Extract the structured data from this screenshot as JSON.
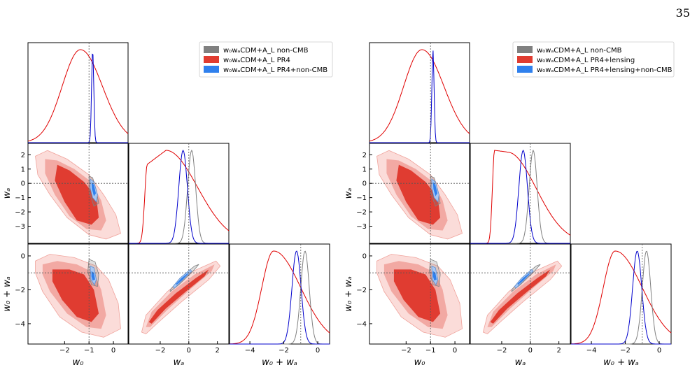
{
  "page": {
    "number": "35"
  },
  "colors": {
    "gray": "#808080",
    "red": "#e03c31",
    "red_mid": "#f2a9a3",
    "red_light": "#fbdcd9",
    "blue": "#2f80ed",
    "blue_dark": "#0000cc",
    "blue_light": "#a9c8f2",
    "line_red": "#e00000"
  },
  "chart_data": [
    {
      "type": "corner",
      "parameters": [
        "w0",
        "wa",
        "w0+wa"
      ],
      "axis_labels": {
        "w0": "w₀",
        "wa": "wₐ",
        "w0+wa": "w₀ + wₐ"
      },
      "reference_values": {
        "w0": -1,
        "wa": 0,
        "w0+wa": -1
      },
      "ranges": {
        "w0": [
          -3.5,
          0.6
        ],
        "wa": [
          -4.2,
          2.8
        ],
        "w0+wa": [
          -5.2,
          0.7
        ]
      },
      "ticks": {
        "w0": [
          "−2",
          "−1",
          "0"
        ],
        "wa_y": [
          "2",
          "1",
          "0",
          "−1",
          "−2",
          "−3"
        ],
        "wa_x": [
          "−2",
          "0",
          "2"
        ],
        "w0wa_y": [
          "0",
          "−2",
          "−4"
        ],
        "w0wa_x": [
          "−4",
          "−2",
          "0"
        ]
      },
      "legend": {
        "placement": "top-right",
        "entries": [
          {
            "label": "w₀wₐCDM+A_L non-CMB",
            "color": "#808080"
          },
          {
            "label": "w₀wₐCDM+A_L PR4",
            "color": "#e03c31"
          },
          {
            "label": "w₀wₐCDM+A_L PR4+non-CMB",
            "color": "#2f80ed"
          }
        ]
      },
      "series": [
        {
          "name": "w₀wₐCDM+A_L non-CMB",
          "marginal_peaks": {
            "wa": 0.2,
            "w0+wa": -0.75
          }
        },
        {
          "name": "w₀wₐCDM+A_L PR4",
          "marginal_peaks": {
            "w0": -1.35,
            "wa": -1.6,
            "w0+wa": -2.6
          }
        },
        {
          "name": "w₀wₐCDM+A_L PR4+non-CMB",
          "marginal_peaks": {
            "w0": -0.85,
            "wa": -0.4,
            "w0+wa": -1.25
          }
        }
      ]
    },
    {
      "type": "corner",
      "parameters": [
        "w0",
        "wa",
        "w0+wa"
      ],
      "axis_labels": {
        "w0": "w₀",
        "wa": "wₐ",
        "w0+wa": "w₀ + wₐ"
      },
      "reference_values": {
        "w0": -1,
        "wa": 0,
        "w0+wa": -1
      },
      "ranges": {
        "w0": [
          -3.5,
          0.6
        ],
        "wa": [
          -4.2,
          2.8
        ],
        "w0+wa": [
          -5.2,
          0.7
        ]
      },
      "ticks": {
        "w0": [
          "−2",
          "−1",
          "0"
        ],
        "wa_y": [
          "2",
          "1",
          "0",
          "−1",
          "−2",
          "−3"
        ],
        "wa_x": [
          "−2",
          "0",
          "2"
        ],
        "w0wa_y": [
          "0",
          "−2",
          "−4"
        ],
        "w0wa_x": [
          "−4",
          "−2",
          "0"
        ]
      },
      "legend": {
        "placement": "top-right",
        "entries": [
          {
            "label": "w₀wₐCDM+A_L non-CMB",
            "color": "#808080"
          },
          {
            "label": "w₀wₐCDM+A_L PR4+lensing",
            "color": "#e03c31"
          },
          {
            "label": "w₀wₐCDM+A_L PR4+lensing+non-CMB",
            "color": "#2f80ed"
          }
        ]
      },
      "series": [
        {
          "name": "w₀wₐCDM+A_L non-CMB",
          "marginal_peaks": {
            "wa": 0.2,
            "w0+wa": -0.75
          }
        },
        {
          "name": "w₀wₐCDM+A_L PR4+lensing",
          "marginal_peaks": {
            "w0": -1.35,
            "wa": -2.0,
            "w0+wa": -2.6
          }
        },
        {
          "name": "w₀wₐCDM+A_L PR4+lensing+non-CMB",
          "marginal_peaks": {
            "w0": -0.9,
            "wa": -0.5,
            "w0+wa": -1.3
          }
        }
      ]
    }
  ]
}
